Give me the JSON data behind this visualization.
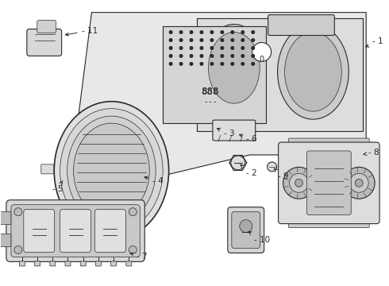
{
  "bg_color": "#ffffff",
  "line_color": "#2a2a2a",
  "fill_color": "#f0f0f0",
  "fig_width": 4.9,
  "fig_height": 3.6,
  "dpi": 100
}
